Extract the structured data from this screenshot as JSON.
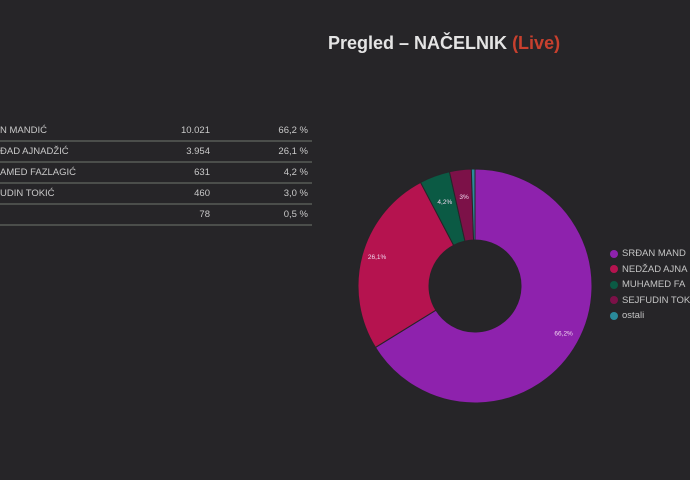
{
  "title": {
    "main": "Pregled – NAČELNIK",
    "live": "(Live)"
  },
  "table": {
    "rows": [
      {
        "name": "N MANDIĆ",
        "votes": "10.021",
        "percent": "66,2 %"
      },
      {
        "name": "ĐAD AJNADŽIĆ",
        "votes": "3.954",
        "percent": "26,1 %"
      },
      {
        "name": "AMED FAZLAGIĆ",
        "votes": "631",
        "percent": "4,2 %"
      },
      {
        "name": "UDIN TOKIĆ",
        "votes": "460",
        "percent": "3,0 %"
      },
      {
        "name": "",
        "votes": "78",
        "percent": "0,5 %"
      }
    ]
  },
  "chart_data": {
    "type": "pie",
    "donut": true,
    "legend_position": "right",
    "categories": [
      "SRĐAN MAND",
      "NEDŽAD AJNA",
      "MUHAMED FA",
      "SEJFUDIN TOK",
      "ostali"
    ],
    "values": [
      66.2,
      26.1,
      4.2,
      3.0,
      0.5
    ],
    "data_labels": [
      "66,2%",
      "26,1%",
      "4,2%",
      "3%",
      ""
    ],
    "colors": [
      "#8e22ad",
      "#b5134f",
      "#0b5a44",
      "#7c1148",
      "#2a8a9a"
    ]
  }
}
